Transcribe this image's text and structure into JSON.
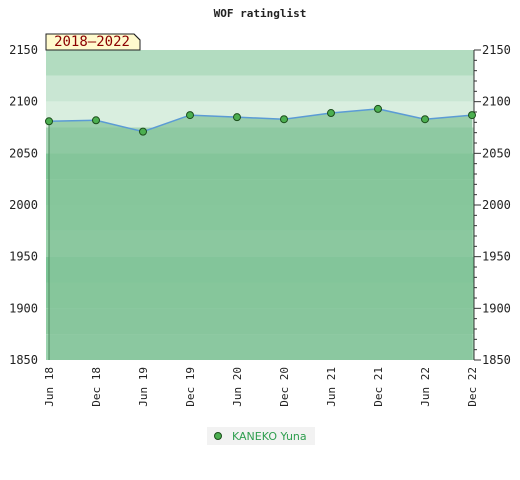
{
  "chart_data": {
    "type": "line",
    "title": "WOF ratinglist",
    "period_label": "2018–2022",
    "categories": [
      "Jun 18",
      "Dec 18",
      "Jun 19",
      "Dec 19",
      "Jun 20",
      "Dec 20",
      "Jun 21",
      "Dec 21",
      "Jun 22",
      "Dec 22"
    ],
    "series": [
      {
        "name": "KANEKO Yuna",
        "values": [
          2081,
          2082,
          2071,
          2087,
          2085,
          2083,
          2089,
          2093,
          2083,
          2087
        ]
      }
    ],
    "ylim": [
      1850,
      2150
    ],
    "yticks": [
      1850,
      1900,
      1950,
      2000,
      2050,
      2100,
      2150
    ],
    "xlabel": "",
    "ylabel": "",
    "grid": false,
    "legend": "bottom-center",
    "colors": {
      "line": "#5b9bd5",
      "marker_fill": "#4caf50",
      "marker_stroke": "#1b4d1b",
      "band_light": "#cfe7d5",
      "band_mid": "#a9d8b7",
      "band_dark": "#7cc596",
      "badge_bg": "#fffacd",
      "badge_text": "#8b0000",
      "legend_text": "#2e9e4e"
    }
  }
}
